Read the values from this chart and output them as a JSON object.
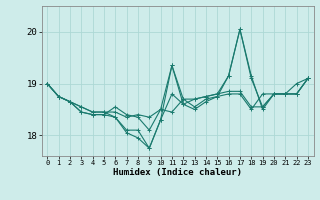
{
  "xlabel": "Humidex (Indice chaleur)",
  "background_color": "#ceecea",
  "grid_color": "#add8d5",
  "line_color": "#1a7a6e",
  "xlim": [
    -0.5,
    23.5
  ],
  "ylim": [
    17.6,
    20.5
  ],
  "yticks": [
    18,
    19,
    20
  ],
  "xticks": [
    0,
    1,
    2,
    3,
    4,
    5,
    6,
    7,
    8,
    9,
    10,
    11,
    12,
    13,
    14,
    15,
    16,
    17,
    18,
    19,
    20,
    21,
    22,
    23
  ],
  "series": [
    [
      19.0,
      18.75,
      18.65,
      18.45,
      18.4,
      18.4,
      18.35,
      18.05,
      17.95,
      17.75,
      18.3,
      19.35,
      18.6,
      18.5,
      18.65,
      18.75,
      18.8,
      18.8,
      18.5,
      18.8,
      18.8,
      18.8,
      19.0,
      19.1
    ],
    [
      19.0,
      18.75,
      18.65,
      18.45,
      18.4,
      18.4,
      18.55,
      18.4,
      18.35,
      18.1,
      18.5,
      19.35,
      18.7,
      18.55,
      18.7,
      18.75,
      19.15,
      20.05,
      19.15,
      18.5,
      18.8,
      18.8,
      18.8,
      19.1
    ],
    [
      19.0,
      18.75,
      18.65,
      18.55,
      18.45,
      18.45,
      18.35,
      18.1,
      18.1,
      17.75,
      18.3,
      18.8,
      18.6,
      18.7,
      18.75,
      18.8,
      19.15,
      20.05,
      19.1,
      18.55,
      18.8,
      18.8,
      18.8,
      19.1
    ],
    [
      19.0,
      18.75,
      18.65,
      18.55,
      18.45,
      18.45,
      18.45,
      18.35,
      18.4,
      18.35,
      18.5,
      18.45,
      18.7,
      18.7,
      18.75,
      18.8,
      18.85,
      18.85,
      18.55,
      18.55,
      18.8,
      18.8,
      18.8,
      19.1
    ]
  ]
}
